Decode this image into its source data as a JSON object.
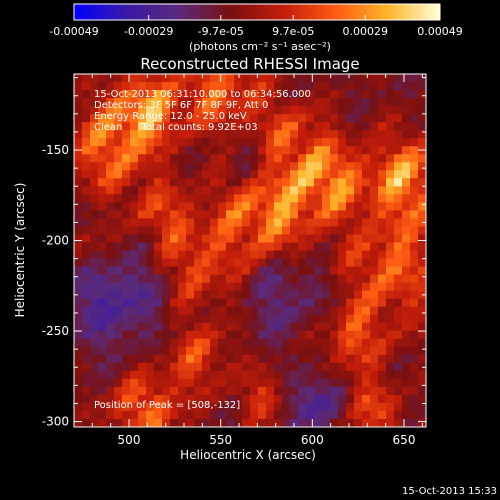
{
  "chart_data": {
    "type": "heatmap",
    "title": "Reconstructed RHESSI Image",
    "xlabel": "Heliocentric X (arcsec)",
    "ylabel": "Heliocentric Y (arcsec)",
    "xlim": [
      470,
      662
    ],
    "ylim": [
      -303,
      -108
    ],
    "x_ticks": [
      500,
      550,
      600,
      650
    ],
    "y_ticks": [
      -150,
      -200,
      -250,
      -300
    ],
    "colorbar": {
      "range": [
        -0.00049,
        0.00049
      ],
      "tick_values": [
        -0.00049,
        -0.00029,
        -9.7e-05,
        9.7e-05,
        0.00029,
        0.00049
      ],
      "tick_labels": [
        "-0.00049",
        "-0.00029",
        "-9.7e-05",
        "9.7e-05",
        "0.00029",
        "0.00049"
      ],
      "units": "(photons cm⁻² s⁻¹ asec⁻²)",
      "stops": [
        "#0000ff",
        "#3a1aa6",
        "#5a2a7a",
        "#7a1010",
        "#c41d0a",
        "#ff5a12",
        "#ffb52a",
        "#ffffd8"
      ]
    },
    "peak": [
      508,
      -132
    ],
    "annotations": {
      "time": "15-Oct-2013 06:31:10.000 to 06:34:56.000",
      "detectors": "Detectors: 3F 5F 6F 7F 8F 9F, Att 0",
      "energy": "Energy Range: 12.0 - 25.0 keV",
      "clean": "Clean      Total counts: 9.92E+03",
      "peak": "Position of Peak = [508,-132]"
    },
    "footer": "15-Oct-2013 15:33"
  }
}
